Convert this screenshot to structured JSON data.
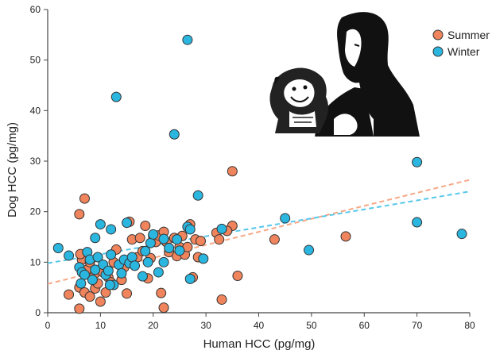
{
  "chart_data": {
    "type": "scatter",
    "xlabel": "Human HCC (pg/mg)",
    "ylabel": "Dog HCC (pg/mg)",
    "xlim": [
      0,
      80
    ],
    "ylim": [
      0,
      60
    ],
    "x_ticks": [
      "0",
      "10",
      "20",
      "30",
      "40",
      "50",
      "60",
      "70",
      "80"
    ],
    "y_ticks": [
      "0",
      "10",
      "20",
      "30",
      "40",
      "50",
      "60"
    ],
    "grid": false,
    "legend_position": "top-right",
    "illustration": "silhouette of a woman holding a dog",
    "series": [
      {
        "name": "Summer",
        "color": "#f0845c",
        "trendline": {
          "style": "dashed",
          "color": "#f6a886",
          "points": [
            [
              0,
              5.7
            ],
            [
              80,
              26.3
            ]
          ]
        },
        "points": [
          [
            4,
            3.6
          ],
          [
            6,
            0.8
          ],
          [
            6,
            5.0
          ],
          [
            6,
            19.5
          ],
          [
            6.5,
            10.5
          ],
          [
            7,
            22.6
          ],
          [
            7,
            4.0
          ],
          [
            7.5,
            8.5
          ],
          [
            8,
            3.2
          ],
          [
            8,
            10.0
          ],
          [
            9,
            4.8
          ],
          [
            9,
            7.8
          ],
          [
            9.5,
            5.8
          ],
          [
            10,
            2.2
          ],
          [
            10.5,
            8.0
          ],
          [
            11,
            4.0
          ],
          [
            11.5,
            7.0
          ],
          [
            12,
            6.0
          ],
          [
            12.5,
            10.0
          ],
          [
            13,
            12.5
          ],
          [
            14,
            6.5
          ],
          [
            14.5,
            9.0
          ],
          [
            15,
            3.8
          ],
          [
            15.5,
            18.0
          ],
          [
            16,
            14.5
          ],
          [
            17,
            11.0
          ],
          [
            17.5,
            14.8
          ],
          [
            18,
            12.2
          ],
          [
            18.5,
            17.2
          ],
          [
            19,
            6.8
          ],
          [
            19.5,
            10.8
          ],
          [
            20,
            15.2
          ],
          [
            20.5,
            14.0
          ],
          [
            21,
            15.3
          ],
          [
            21.5,
            3.9
          ],
          [
            22,
            1.0
          ],
          [
            22,
            16.0
          ],
          [
            22.5,
            14.0
          ],
          [
            23,
            12.0
          ],
          [
            24,
            14.8
          ],
          [
            24.5,
            11.2
          ],
          [
            25,
            13.0
          ],
          [
            25.5,
            15.2
          ],
          [
            26,
            11.5
          ],
          [
            26.5,
            13.0
          ],
          [
            27,
            17.5
          ],
          [
            27.5,
            7.0
          ],
          [
            28,
            14.5
          ],
          [
            28.5,
            11.0
          ],
          [
            29,
            14.2
          ],
          [
            32,
            15.8
          ],
          [
            32.5,
            14.5
          ],
          [
            33,
            2.6
          ],
          [
            35,
            28.0
          ],
          [
            35,
            17.2
          ],
          [
            36,
            7.3
          ],
          [
            43,
            14.5
          ],
          [
            56.5,
            15.1
          ],
          [
            34,
            16.2
          ],
          [
            6.2,
            11.6
          ]
        ]
      },
      {
        "name": "Winter",
        "color": "#2bb6e0",
        "trendline": {
          "style": "dashed",
          "color": "#56c7ea",
          "points": [
            [
              0,
              9.8
            ],
            [
              80,
              24.0
            ]
          ]
        },
        "points": [
          [
            2,
            12.8
          ],
          [
            4,
            11.3
          ],
          [
            6,
            9.0
          ],
          [
            6.5,
            8.0
          ],
          [
            7,
            7.5
          ],
          [
            7.5,
            12.0
          ],
          [
            8,
            10.5
          ],
          [
            8.5,
            6.5
          ],
          [
            9,
            8.5
          ],
          [
            9,
            14.8
          ],
          [
            9.5,
            11.0
          ],
          [
            10,
            17.5
          ],
          [
            10.5,
            9.5
          ],
          [
            11,
            7.5
          ],
          [
            11.5,
            8.3
          ],
          [
            12,
            16.5
          ],
          [
            12,
            11.5
          ],
          [
            12.5,
            5.5
          ],
          [
            13,
            42.7
          ],
          [
            13.5,
            9.5
          ],
          [
            14,
            7.8
          ],
          [
            14.5,
            10.5
          ],
          [
            15,
            17.8
          ],
          [
            15.5,
            9.8
          ],
          [
            16,
            11.0
          ],
          [
            16.5,
            9.3
          ],
          [
            18,
            7.2
          ],
          [
            18.5,
            12.2
          ],
          [
            19,
            10.0
          ],
          [
            19.5,
            13.8
          ],
          [
            20,
            15.5
          ],
          [
            21,
            8.0
          ],
          [
            22,
            14.6
          ],
          [
            22,
            10.0
          ],
          [
            23,
            12.8
          ],
          [
            24,
            35.3
          ],
          [
            24.5,
            14.5
          ],
          [
            25,
            12.3
          ],
          [
            26.5,
            17.0
          ],
          [
            26.5,
            54.0
          ],
          [
            27,
            6.7
          ],
          [
            27,
            16.5
          ],
          [
            28.5,
            23.2
          ],
          [
            29.5,
            10.7
          ],
          [
            33,
            16.6
          ],
          [
            45,
            18.7
          ],
          [
            49.5,
            12.4
          ],
          [
            70,
            29.8
          ],
          [
            70,
            17.9
          ],
          [
            78.5,
            15.6
          ],
          [
            6.3,
            5.8
          ],
          [
            11.8,
            5.5
          ]
        ]
      }
    ]
  }
}
